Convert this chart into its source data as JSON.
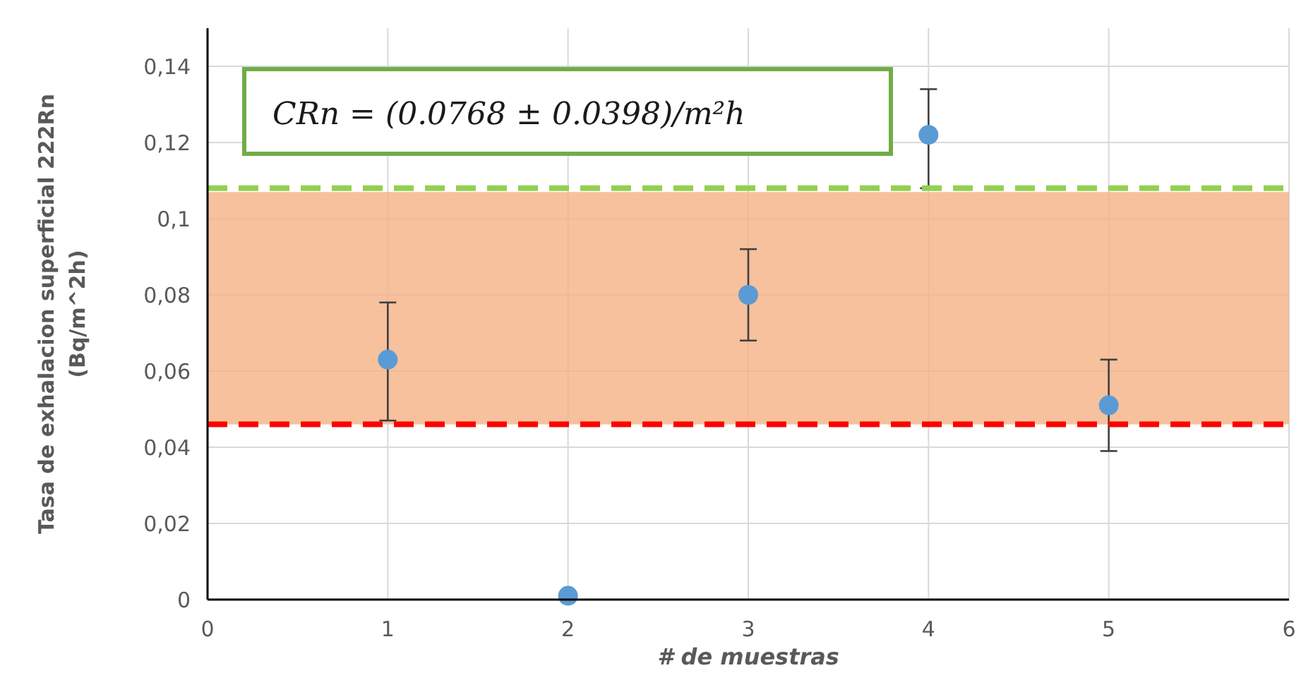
{
  "chart_data": {
    "type": "scatter",
    "xlabel": "# de muestras",
    "ylabel": "Tasa de exhalacion superficial 222Rn (Bq/m^2h)",
    "x": [
      1,
      2,
      3,
      4,
      5
    ],
    "series": [
      {
        "color": "#5b9bd5",
        "values": [
          0.063,
          0.001,
          0.08,
          0.122,
          0.051
        ],
        "errors": [
          [
            0.047,
            0.078
          ],
          null,
          [
            0.068,
            0.092
          ],
          [
            0.108,
            0.134
          ],
          [
            0.039,
            0.063
          ]
        ]
      }
    ],
    "xlim": [
      0,
      6
    ],
    "xticks": [
      0,
      1,
      2,
      3,
      4,
      5,
      6
    ],
    "ylim": [
      0,
      0.15
    ],
    "yticks": [
      {
        "value": 0,
        "label": "0"
      },
      {
        "value": 0.02,
        "label": "0,02"
      },
      {
        "value": 0.04,
        "label": "0,04"
      },
      {
        "value": 0.06,
        "label": "0,06"
      },
      {
        "value": 0.08,
        "label": "0,08"
      },
      {
        "value": 0.1,
        "label": "0,1"
      },
      {
        "value": 0.12,
        "label": "0,12"
      },
      {
        "value": 0.14,
        "label": "0,14"
      }
    ],
    "grid": true,
    "marker": "circle",
    "bands": [
      {
        "axis": "y",
        "from": 0.046,
        "to": 0.107,
        "color": "#f4b183"
      }
    ],
    "ref_lines": [
      {
        "axis": "y",
        "value": 0.108,
        "color": "#92d050",
        "line_style": "dashed"
      },
      {
        "axis": "y",
        "value": 0.046,
        "color": "#ff0000",
        "line_style": "dashed"
      }
    ],
    "annotations": [
      "CRn = (0.0768 ± 0.0398)/m²h"
    ]
  }
}
